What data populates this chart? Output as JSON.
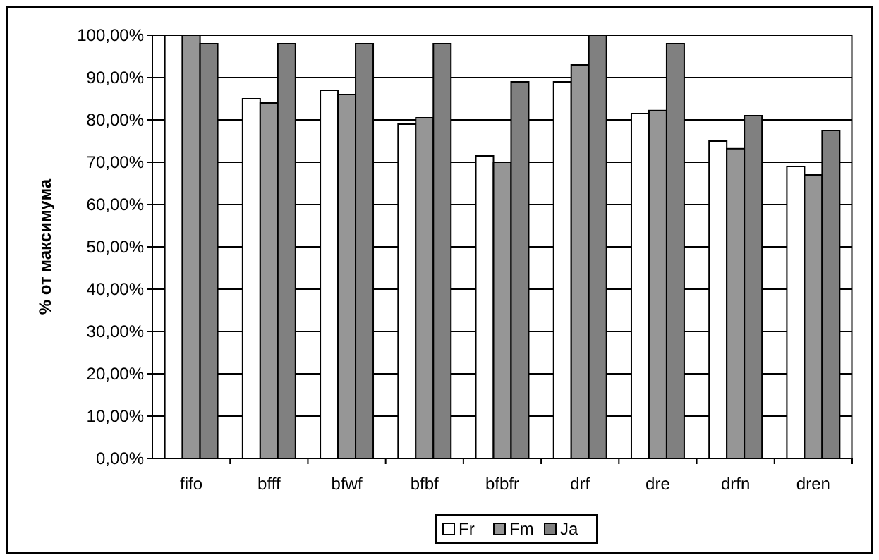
{
  "chart_data": {
    "type": "bar",
    "ylabel": "% от максимума",
    "categories": [
      "fifo",
      "bfff",
      "bfwf",
      "bfbf",
      "bfbfr",
      "drf",
      "dre",
      "drfn",
      "dren"
    ],
    "series": [
      {
        "name": "Fr",
        "color": "#ffffff",
        "values": [
          100,
          85,
          87,
          79,
          71.5,
          89,
          81.5,
          75,
          69
        ]
      },
      {
        "name": "Fm",
        "color": "#969696",
        "values": [
          100,
          84,
          86,
          80.5,
          70,
          93,
          82.2,
          73.2,
          67
        ]
      },
      {
        "name": "Ja",
        "color": "#808080",
        "values": [
          98,
          98,
          98,
          98,
          89,
          100,
          98,
          81,
          77.5
        ]
      }
    ],
    "ylim": [
      0,
      100
    ],
    "yticks": [
      {
        "value": 0,
        "label": "0,00%"
      },
      {
        "value": 10,
        "label": "10,00%"
      },
      {
        "value": 20,
        "label": "20,00%"
      },
      {
        "value": 30,
        "label": "30,00%"
      },
      {
        "value": 40,
        "label": "40,00%"
      },
      {
        "value": 50,
        "label": "50,00%"
      },
      {
        "value": 60,
        "label": "60,00%"
      },
      {
        "value": 70,
        "label": "70,00%"
      },
      {
        "value": 80,
        "label": "80,00%"
      },
      {
        "value": 90,
        "label": "90,00%"
      },
      {
        "value": 100,
        "label": "100,00%"
      }
    ],
    "grid": "y",
    "legend": "bottom"
  }
}
